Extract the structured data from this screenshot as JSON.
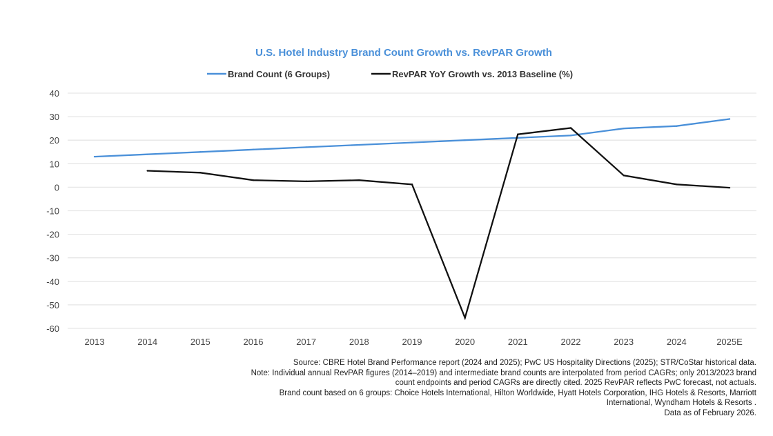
{
  "chart_data": {
    "type": "line",
    "title": "U.S. Hotel Industry Brand Count Growth vs. RevPAR Growth",
    "categories": [
      "2013",
      "2014",
      "2015",
      "2016",
      "2017",
      "2018",
      "2019",
      "2020",
      "2021",
      "2022",
      "2023",
      "2024",
      "2025E"
    ],
    "ylim": [
      -60,
      40
    ],
    "yticks": [
      40,
      30,
      20,
      10,
      0,
      -10,
      -20,
      -30,
      -40,
      -50,
      -60
    ],
    "grid": true,
    "legend_position": "top",
    "series": [
      {
        "name": "Brand Count (6 Groups)",
        "color": "#4a90d9",
        "values": [
          13,
          14,
          15,
          16,
          17,
          18,
          19,
          20,
          21,
          22,
          25,
          26,
          29
        ]
      },
      {
        "name": "RevPAR YoY Growth vs. 2013 Baseline (%)",
        "color": "#111111",
        "values": [
          null,
          7,
          6.2,
          3,
          2.5,
          3,
          1.2,
          -55.5,
          22.5,
          25.2,
          5,
          1.2,
          -0.2
        ]
      }
    ]
  },
  "notes": [
    "Source: CBRE Hotel Brand Performance report (2024 and 2025); PwC US Hospitality Directions (2025); STR/CoStar historical data.",
    "Note: Individual annual RevPAR figures (2014–2019) and intermediate brand counts are interpolated from period CAGRs; only 2013/2023 brand count endpoints and period CAGRs are directly cited. 2025 RevPAR reflects PwC forecast, not actuals.",
    "Brand count based on 6 groups: Choice Hotels International, Hilton Worldwide, Hyatt Hotels Corporation, IHG Hotels & Resorts, Marriott International, Wyndham Hotels & Resorts .",
    "Data as of February 2026."
  ]
}
